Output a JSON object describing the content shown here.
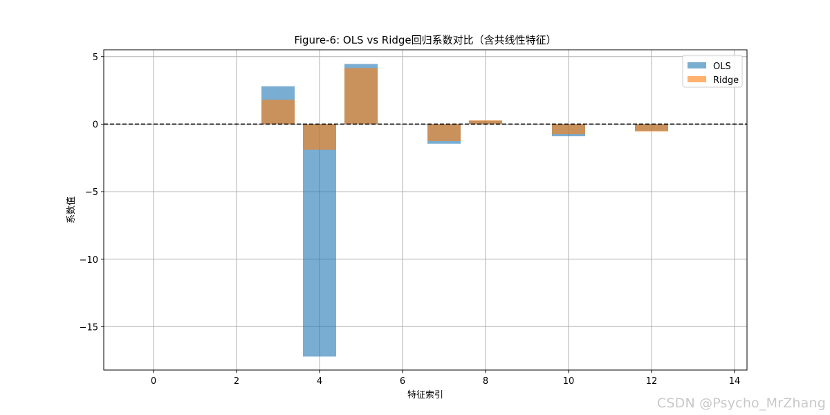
{
  "chart_data": {
    "type": "bar",
    "title": "Figure-6: OLS vs Ridge回归系数对比（含共线性特征）",
    "xlabel": "特征索引",
    "ylabel": "系数值",
    "x": [
      0,
      1,
      2,
      3,
      4,
      5,
      6,
      7,
      8,
      9,
      10,
      11,
      12,
      13
    ],
    "series": [
      {
        "name": "OLS",
        "values": [
          0,
          0,
          0,
          2.8,
          -17.2,
          4.45,
          0,
          -1.45,
          0.25,
          0,
          -0.9,
          0,
          -0.5,
          0
        ]
      },
      {
        "name": "Ridge",
        "values": [
          0,
          0,
          0,
          1.8,
          -1.9,
          4.15,
          0,
          -1.25,
          0.28,
          0,
          -0.75,
          0,
          -0.55,
          0
        ]
      }
    ],
    "xlim": [
      -1.2,
      14.3
    ],
    "ylim": [
      -18.2,
      5.5
    ],
    "xticks": [
      0,
      2,
      4,
      6,
      8,
      10,
      12,
      14
    ],
    "yticks": [
      5,
      0,
      -5,
      -10,
      -15
    ],
    "ytick_labels": [
      "5",
      "0",
      "−5",
      "−10",
      "−15"
    ],
    "reference_line": {
      "y": 0,
      "style": "dashed",
      "color": "#000000"
    },
    "grid": true,
    "legend_position": "top-right",
    "colors": {
      "OLS": "#1f77b4",
      "Ridge": "#ff7f0e"
    },
    "bar_alpha": 0.6
  },
  "watermark": "CSDN @Psycho_MrZhang"
}
